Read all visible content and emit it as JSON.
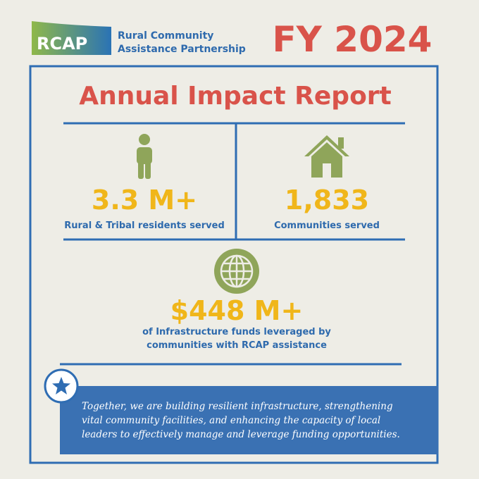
{
  "header": {
    "logo_text": "RCAP",
    "org_name": [
      "Rural Community",
      "Assistance Partnership"
    ],
    "fiscal_year": "FY 2024"
  },
  "title": "Annual Impact Report",
  "stats": [
    {
      "value": "3.3 M+",
      "label": [
        "Rural & Tribal residents served"
      ]
    },
    {
      "value": "1,833",
      "label": [
        "Communities served"
      ]
    },
    {
      "value": "$448 M+",
      "label": [
        "of Infrastructure funds leveraged by",
        "communities with RCAP assistance"
      ]
    }
  ],
  "statement": [
    "Together, we are building resilient infrastructure, strengthening",
    "vital community facilities, and enhancing the capacity of local",
    "leaders to effectively manage and leverage funding opportunities."
  ]
}
